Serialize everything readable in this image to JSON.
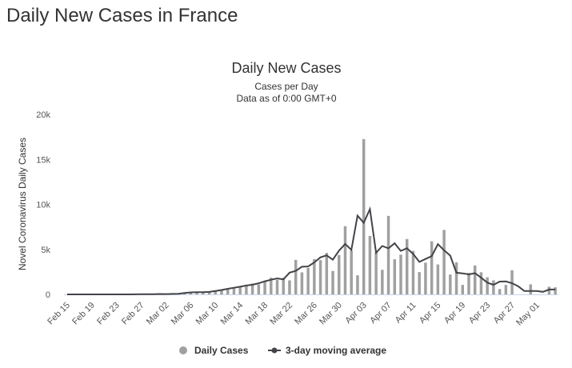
{
  "page": {
    "title": "Daily New Cases in France"
  },
  "chart_data": {
    "type": "bar",
    "title": "Daily New Cases",
    "subtitle": "Cases per Day",
    "subtitle2": "Data as of 0:00 GMT+0",
    "xlabel": "",
    "ylabel": "Novel Coronavirus Daily Cases",
    "ylim": [
      0,
      20000
    ],
    "yticks": [
      0,
      5000,
      10000,
      15000,
      20000
    ],
    "ytick_labels": [
      "0",
      "5k",
      "10k",
      "15k",
      "20k"
    ],
    "x_tick_labels": [
      "Feb 15",
      "Feb 19",
      "Feb 23",
      "Feb 27",
      "Mar 02",
      "Mar 06",
      "Mar 10",
      "Mar 14",
      "Mar 18",
      "Mar 22",
      "Mar 26",
      "Mar 30",
      "Apr 03",
      "Apr 07",
      "Apr 11",
      "Apr 15",
      "Apr 19",
      "Apr 23",
      "Apr 27",
      "May 01"
    ],
    "x_tick_every": 4,
    "categories": [
      "Feb 15",
      "Feb 16",
      "Feb 17",
      "Feb 18",
      "Feb 19",
      "Feb 20",
      "Feb 21",
      "Feb 22",
      "Feb 23",
      "Feb 24",
      "Feb 25",
      "Feb 26",
      "Feb 27",
      "Feb 28",
      "Feb 29",
      "Mar 01",
      "Mar 02",
      "Mar 03",
      "Mar 04",
      "Mar 05",
      "Mar 06",
      "Mar 07",
      "Mar 08",
      "Mar 09",
      "Mar 10",
      "Mar 11",
      "Mar 12",
      "Mar 13",
      "Mar 14",
      "Mar 15",
      "Mar 16",
      "Mar 17",
      "Mar 18",
      "Mar 19",
      "Mar 20",
      "Mar 21",
      "Mar 22",
      "Mar 23",
      "Mar 24",
      "Mar 25",
      "Mar 26",
      "Mar 27",
      "Mar 28",
      "Mar 29",
      "Mar 30",
      "Mar 31",
      "Apr 01",
      "Apr 02",
      "Apr 03",
      "Apr 04",
      "Apr 05",
      "Apr 06",
      "Apr 07",
      "Apr 08",
      "Apr 09",
      "Apr 10",
      "Apr 11",
      "Apr 12",
      "Apr 13",
      "Apr 14",
      "Apr 15",
      "Apr 16",
      "Apr 17",
      "Apr 18",
      "Apr 19",
      "Apr 20",
      "Apr 21",
      "Apr 22",
      "Apr 23",
      "Apr 24",
      "Apr 25",
      "Apr 26",
      "Apr 27",
      "Apr 28",
      "Apr 29",
      "Apr 30",
      "May 01",
      "May 02",
      "May 03",
      "May 04"
    ],
    "series": [
      {
        "name": "Daily Cases",
        "type": "bar",
        "color": "#a0a0a0",
        "values": [
          0,
          0,
          0,
          0,
          0,
          0,
          0,
          0,
          0,
          0,
          2,
          2,
          20,
          19,
          43,
          30,
          61,
          13,
          84,
          92,
          276,
          296,
          177,
          286,
          372,
          497,
          595,
          785,
          838,
          924,
          1210,
          1097,
          1404,
          1861,
          1617,
          1847,
          1559,
          3838,
          2446,
          2931,
          3922,
          3809,
          4611,
          2599,
          4376,
          7578,
          4861,
          2116,
          17254,
          6491,
          4676,
          2733,
          8726,
          3902,
          4417,
          6151,
          4826,
          2477,
          3525,
          5904,
          3328,
          7157,
          2208,
          3570,
          1058,
          2384,
          3216,
          2463,
          1907,
          1560,
          592,
          1054,
          2685,
          0,
          0,
          1116,
          0,
          0,
          849,
          790
        ]
      },
      {
        "name": "3-day moving average",
        "type": "line",
        "color": "#434348",
        "values": [
          0,
          0,
          0,
          0,
          0,
          0,
          0,
          0,
          0,
          1,
          1,
          8,
          14,
          27,
          31,
          45,
          35,
          53,
          63,
          151,
          221,
          250,
          253,
          278,
          385,
          488,
          626,
          739,
          849,
          991,
          1077,
          1237,
          1454,
          1627,
          1775,
          1674,
          2415,
          2614,
          3072,
          3100,
          3554,
          4114,
          4340,
          3862,
          4858,
          5605,
          4938,
          8744,
          7954,
          9474,
          4633,
          5378,
          5120,
          5682,
          4825,
          5131,
          4485,
          3609,
          3935,
          4251,
          5586,
          4898,
          4312,
          2413,
          2337,
          2219,
          2354,
          1862,
          1310,
          1069,
          1420,
          0,
          0,
          0,
          0,
          0,
          0,
          0,
          0,
          0
        ]
      }
    ],
    "legend": [
      "Daily Cases",
      "3-day moving average"
    ],
    "legend_position": "bottom-center",
    "grid": false
  }
}
